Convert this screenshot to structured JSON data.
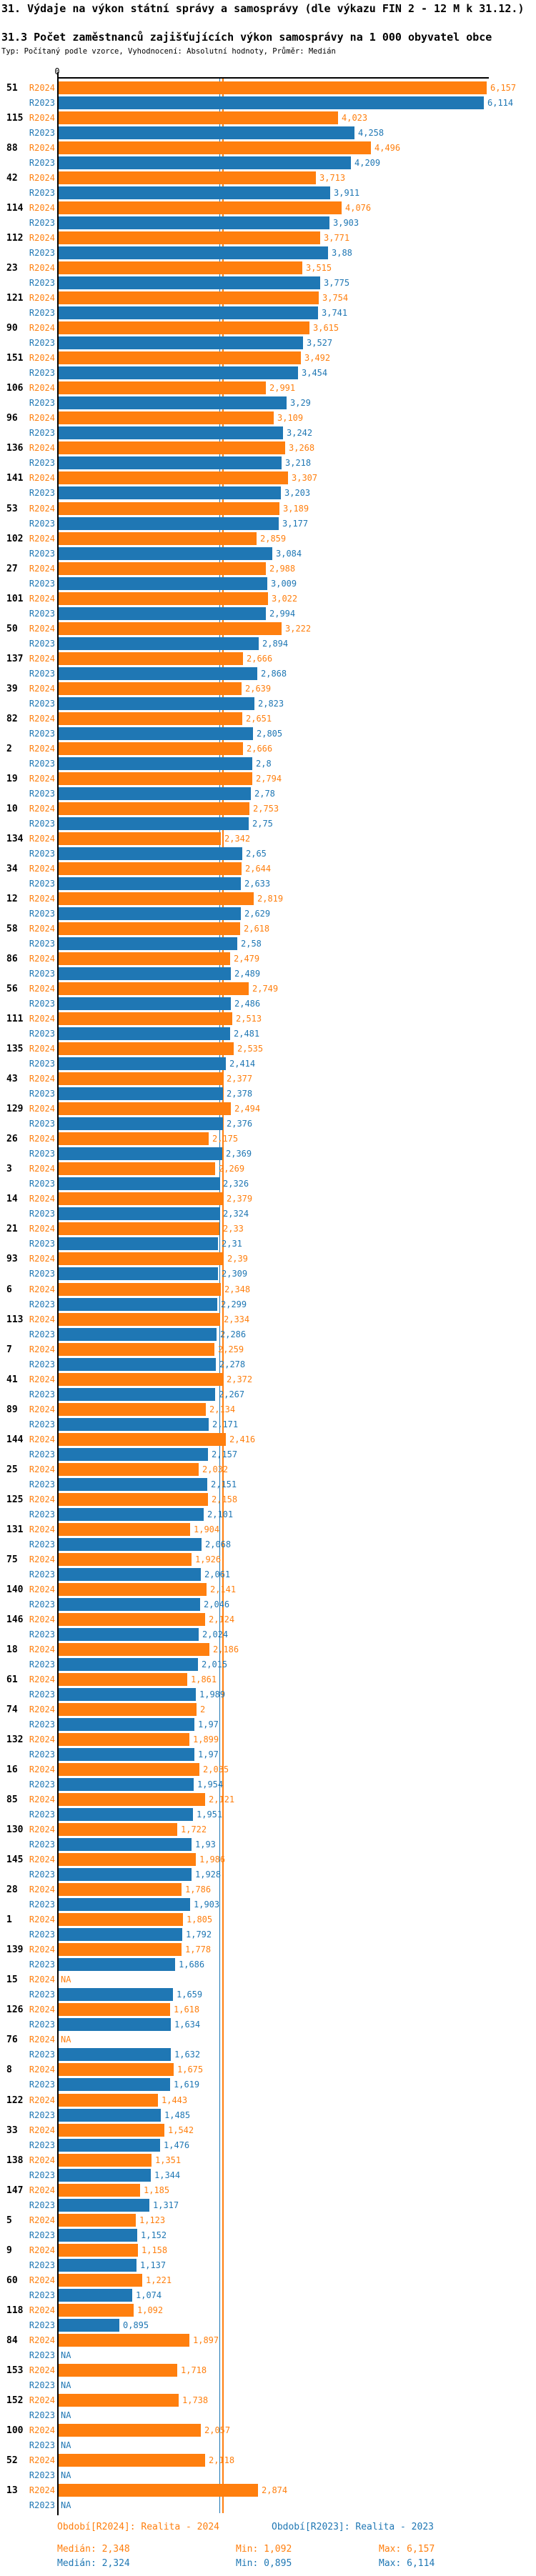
{
  "header": {
    "title": "31. Výdaje na výkon státní správy a samosprávy (dle výkazu FIN 2 - 12 M k 31.12.)",
    "subtitle": "31.3 Počet zaměstnanců zajišťujících výkon samosprávy na 1 000 obyvatel obce",
    "meta": "Typ: Počítaný podle vzorce, Vyhodnocení: Absolutní hodnoty, Průměr: Medián"
  },
  "legend": {
    "r2024": {
      "period": "Období[R2024]: Realita - 2024",
      "median": "Medián: 2,348",
      "min": "Min: 1,092",
      "max": "Max: 6,157"
    },
    "r2023": {
      "period": "Období[R2023]: Realita - 2023",
      "median": "Medián: 2,324",
      "min": "Min: 0,895",
      "max": "Max: 6,114"
    }
  },
  "chart_data": {
    "type": "bar",
    "orientation": "horizontal",
    "title": "31.3 Počet zaměstnanců zajišťujících výkon samosprávy na 1 000 obyvatel obce",
    "value_axis": {
      "zero_label": "0",
      "min": 0,
      "max_shown_value": "6,157"
    },
    "grid": false,
    "legend_position": "bottom",
    "na_label": "NA",
    "series": [
      {
        "name": "R2024",
        "label": "Realita - 2024",
        "color": "#ff7f0e",
        "median": "2,348",
        "min": "1,092",
        "max": "6,157"
      },
      {
        "name": "R2023",
        "label": "Realita - 2023",
        "color": "#1f77b4",
        "median": "2,324",
        "min": "0,895",
        "max": "6,114"
      }
    ],
    "groups": [
      [
        "51",
        "6,157",
        "6,114"
      ],
      [
        "115",
        "4,023",
        "4,258"
      ],
      [
        "88",
        "4,496",
        "4,209"
      ],
      [
        "42",
        "3,713",
        "3,911"
      ],
      [
        "114",
        "4,076",
        "3,903"
      ],
      [
        "112",
        "3,771",
        "3,88"
      ],
      [
        "23",
        "3,515",
        "3,775"
      ],
      [
        "121",
        "3,754",
        "3,741"
      ],
      [
        "90",
        "3,615",
        "3,527"
      ],
      [
        "151",
        "3,492",
        "3,454"
      ],
      [
        "106",
        "2,991",
        "3,29"
      ],
      [
        "96",
        "3,109",
        "3,242"
      ],
      [
        "136",
        "3,268",
        "3,218"
      ],
      [
        "141",
        "3,307",
        "3,203"
      ],
      [
        "53",
        "3,189",
        "3,177"
      ],
      [
        "102",
        "2,859",
        "3,084"
      ],
      [
        "27",
        "2,988",
        "3,009"
      ],
      [
        "101",
        "3,022",
        "2,994"
      ],
      [
        "50",
        "3,222",
        "2,894"
      ],
      [
        "137",
        "2,666",
        "2,868"
      ],
      [
        "39",
        "2,639",
        "2,823"
      ],
      [
        "82",
        "2,651",
        "2,805"
      ],
      [
        "2",
        "2,666",
        "2,8"
      ],
      [
        "19",
        "2,794",
        "2,78"
      ],
      [
        "10",
        "2,753",
        "2,75"
      ],
      [
        "134",
        "2,342",
        "2,65"
      ],
      [
        "34",
        "2,644",
        "2,633"
      ],
      [
        "12",
        "2,819",
        "2,629"
      ],
      [
        "58",
        "2,618",
        "2,58"
      ],
      [
        "86",
        "2,479",
        "2,489"
      ],
      [
        "56",
        "2,749",
        "2,486"
      ],
      [
        "111",
        "2,513",
        "2,481"
      ],
      [
        "135",
        "2,535",
        "2,414"
      ],
      [
        "43",
        "2,377",
        "2,378"
      ],
      [
        "129",
        "2,494",
        "2,376"
      ],
      [
        "26",
        "2,175",
        "2,369"
      ],
      [
        "3",
        "2,269",
        "2,326"
      ],
      [
        "14",
        "2,379",
        "2,324"
      ],
      [
        "21",
        "2,33",
        "2,31"
      ],
      [
        "93",
        "2,39",
        "2,309"
      ],
      [
        "6",
        "2,348",
        "2,299"
      ],
      [
        "113",
        "2,334",
        "2,286"
      ],
      [
        "7",
        "2,259",
        "2,278"
      ],
      [
        "41",
        "2,372",
        "2,267"
      ],
      [
        "89",
        "2,134",
        "2,171"
      ],
      [
        "144",
        "2,416",
        "2,157"
      ],
      [
        "25",
        "2,032",
        "2,151"
      ],
      [
        "125",
        "2,158",
        "2,101"
      ],
      [
        "131",
        "1,904",
        "2,068"
      ],
      [
        "75",
        "1,926",
        "2,061"
      ],
      [
        "140",
        "2,141",
        "2,046"
      ],
      [
        "146",
        "2,124",
        "2,024"
      ],
      [
        "18",
        "2,186",
        "2,015"
      ],
      [
        "61",
        "1,861",
        "1,989"
      ],
      [
        "74",
        "2",
        "1,97"
      ],
      [
        "132",
        "1,899",
        "1,97"
      ],
      [
        "16",
        "2,035",
        "1,954"
      ],
      [
        "85",
        "2,121",
        "1,951"
      ],
      [
        "130",
        "1,722",
        "1,93"
      ],
      [
        "145",
        "1,986",
        "1,928"
      ],
      [
        "28",
        "1,786",
        "1,903"
      ],
      [
        "1",
        "1,805",
        "1,792"
      ],
      [
        "139",
        "1,778",
        "1,686"
      ],
      [
        "15",
        "NA",
        "1,659"
      ],
      [
        "126",
        "1,618",
        "1,634"
      ],
      [
        "76",
        "NA",
        "1,632"
      ],
      [
        "8",
        "1,675",
        "1,619"
      ],
      [
        "122",
        "1,443",
        "1,485"
      ],
      [
        "33",
        "1,542",
        "1,476"
      ],
      [
        "138",
        "1,351",
        "1,344"
      ],
      [
        "147",
        "1,185",
        "1,317"
      ],
      [
        "5",
        "1,123",
        "1,152"
      ],
      [
        "9",
        "1,158",
        "1,137"
      ],
      [
        "60",
        "1,221",
        "1,074"
      ],
      [
        "118",
        "1,092",
        "0,895"
      ],
      [
        "84",
        "1,897",
        "NA"
      ],
      [
        "153",
        "1,718",
        "NA"
      ],
      [
        "152",
        "1,738",
        "NA"
      ],
      [
        "100",
        "2,057",
        "NA"
      ],
      [
        "52",
        "2,118",
        "NA"
      ],
      [
        "13",
        "2,874",
        "NA"
      ]
    ]
  }
}
